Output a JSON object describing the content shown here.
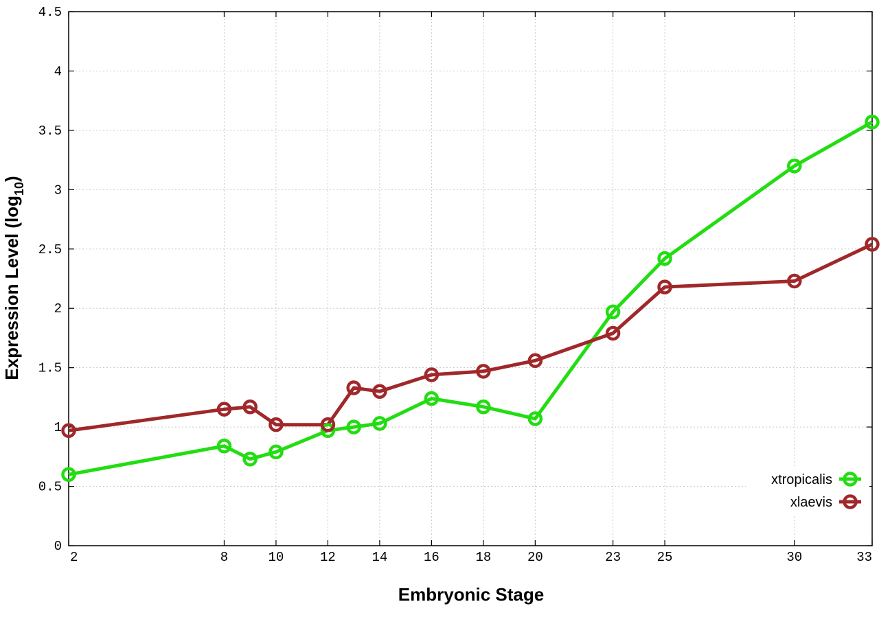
{
  "chart_data": {
    "type": "line",
    "xlabel": "Embryonic Stage",
    "ylabel_main": "Expression Level (log",
    "ylabel_sub": "10",
    "ylabel_end": ")",
    "x": [
      2,
      8,
      9,
      10,
      12,
      13,
      14,
      16,
      18,
      20,
      23,
      25,
      30,
      33
    ],
    "x_ticks": [
      "2",
      "8",
      "10",
      "12",
      "14",
      "16",
      "18",
      "20",
      "23",
      "25",
      "30",
      "33"
    ],
    "xlim": [
      2,
      33
    ],
    "ylim": [
      0,
      4.5
    ],
    "y_ticks": [
      "0",
      "0.5",
      "1",
      "1.5",
      "2",
      "2.5",
      "3",
      "3.5",
      "4",
      "4.5"
    ],
    "grid": true,
    "legend": "bottom-right",
    "series": [
      {
        "name": "xtropicalis",
        "color": "#22dd11",
        "values": [
          0.6,
          0.84,
          0.73,
          0.79,
          0.97,
          1.0,
          1.03,
          1.24,
          1.17,
          1.07,
          1.97,
          2.42,
          3.2,
          3.57
        ]
      },
      {
        "name": "xlaevis",
        "color": "#a0282a",
        "values": [
          0.97,
          1.15,
          1.17,
          1.02,
          1.02,
          1.33,
          1.3,
          1.44,
          1.47,
          1.56,
          1.79,
          2.18,
          2.23,
          2.54
        ]
      }
    ]
  }
}
